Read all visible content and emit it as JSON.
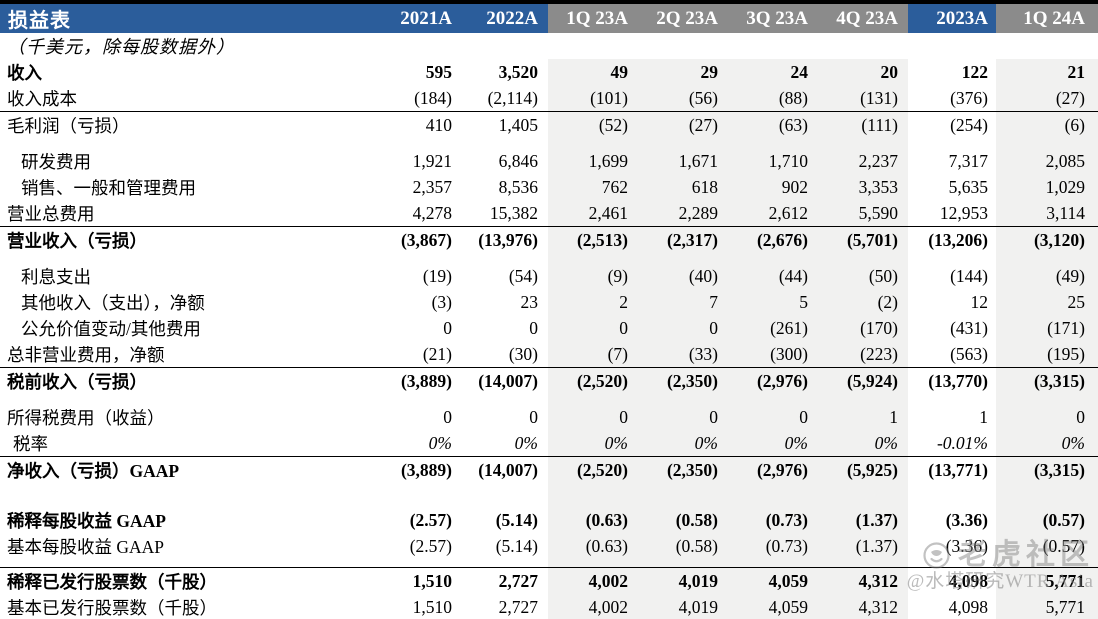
{
  "table": {
    "title": "损益表",
    "subtitle": "（千美元，除每股数据外）",
    "columns": [
      {
        "label": "2021A",
        "theme": "blue"
      },
      {
        "label": "2022A",
        "theme": "blue"
      },
      {
        "label": "1Q 23A",
        "theme": "gray"
      },
      {
        "label": "2Q 23A",
        "theme": "gray"
      },
      {
        "label": "3Q 23A",
        "theme": "gray"
      },
      {
        "label": "4Q 23A",
        "theme": "gray"
      },
      {
        "label": "2023A",
        "theme": "blue"
      },
      {
        "label": "1Q 24A",
        "theme": "gray"
      }
    ],
    "rows": [
      {
        "label": "收入",
        "bold": true,
        "values": [
          "595",
          "3,520",
          "49",
          "29",
          "24",
          "20",
          "122",
          "21"
        ]
      },
      {
        "label": "收入成本",
        "line": true,
        "values": [
          "(184)",
          "(2,114)",
          "(101)",
          "(56)",
          "(88)",
          "(131)",
          "(376)",
          "(27)"
        ]
      },
      {
        "label": "毛利润（亏损）",
        "values": [
          "410",
          "1,405",
          "(52)",
          "(27)",
          "(63)",
          "(111)",
          "(254)",
          "(6)"
        ]
      },
      {
        "spacer": "sp"
      },
      {
        "label": "研发费用",
        "indent": true,
        "values": [
          "1,921",
          "6,846",
          "1,699",
          "1,671",
          "1,710",
          "2,237",
          "7,317",
          "2,085"
        ]
      },
      {
        "label": "销售、一般和管理费用",
        "indent": true,
        "values": [
          "2,357",
          "8,536",
          "762",
          "618",
          "902",
          "3,353",
          "5,635",
          "1,029"
        ]
      },
      {
        "label": "营业总费用",
        "line": true,
        "values": [
          "4,278",
          "15,382",
          "2,461",
          "2,289",
          "2,612",
          "5,590",
          "12,953",
          "3,114"
        ]
      },
      {
        "label": "营业收入（亏损）",
        "bold": true,
        "values": [
          "(3,867)",
          "(13,976)",
          "(2,513)",
          "(2,317)",
          "(2,676)",
          "(5,701)",
          "(13,206)",
          "(3,120)"
        ]
      },
      {
        "spacer": "sp"
      },
      {
        "label": "利息支出",
        "indent": true,
        "values": [
          "(19)",
          "(54)",
          "(9)",
          "(40)",
          "(44)",
          "(50)",
          "(144)",
          "(49)"
        ]
      },
      {
        "label": "其他收入（支出），净额",
        "indent": true,
        "values": [
          "(3)",
          "23",
          "2",
          "7",
          "5",
          "(2)",
          "12",
          "25"
        ]
      },
      {
        "label": "公允价值变动/其他费用",
        "indent": true,
        "values": [
          "0",
          "0",
          "0",
          "0",
          "(261)",
          "(170)",
          "(431)",
          "(171)"
        ]
      },
      {
        "label": "总非营业费用，净额",
        "line": true,
        "values": [
          "(21)",
          "(30)",
          "(7)",
          "(33)",
          "(300)",
          "(223)",
          "(563)",
          "(195)"
        ]
      },
      {
        "label": "税前收入（亏损）",
        "bold": true,
        "values": [
          "(3,889)",
          "(14,007)",
          "(2,520)",
          "(2,350)",
          "(2,976)",
          "(5,924)",
          "(13,770)",
          "(3,315)"
        ]
      },
      {
        "spacer": "sp"
      },
      {
        "label": "所得税费用（收益）",
        "values": [
          "0",
          "0",
          "0",
          "0",
          "0",
          "1",
          "1",
          "0"
        ]
      },
      {
        "label": "税率",
        "halfindent": true,
        "italic": true,
        "line": true,
        "values": [
          "0%",
          "0%",
          "0%",
          "0%",
          "0%",
          "0%",
          "-0.01%",
          "0%"
        ]
      },
      {
        "label": "净收入（亏损）GAAP",
        "bold": true,
        "values": [
          "(3,889)",
          "(14,007)",
          "(2,520)",
          "(2,350)",
          "(2,976)",
          "(5,925)",
          "(13,771)",
          "(3,315)"
        ]
      },
      {
        "spacer": "sp24"
      },
      {
        "label": "稀释每股收益 GAAP",
        "bold": true,
        "values": [
          "(2.57)",
          "(5.14)",
          "(0.63)",
          "(0.58)",
          "(0.73)",
          "(1.37)",
          "(3.36)",
          "(0.57)"
        ]
      },
      {
        "label": "基本每股收益 GAAP",
        "values": [
          "(2.57)",
          "(5.14)",
          "(0.63)",
          "(0.58)",
          "(0.73)",
          "(1.37)",
          "(3.36)",
          "(0.57)"
        ]
      },
      {
        "spacer": "sp8",
        "line": true
      },
      {
        "label": "稀释已发行股票数（千股）",
        "bold": true,
        "values": [
          "1,510",
          "2,727",
          "4,002",
          "4,019",
          "4,059",
          "4,312",
          "4,098",
          "5,771"
        ]
      },
      {
        "label": "基本已发行股票数（千股）",
        "thick": true,
        "values": [
          "1,510",
          "2,727",
          "4,002",
          "4,019",
          "4,059",
          "4,312",
          "4,098",
          "5,771"
        ]
      }
    ]
  },
  "watermark": {
    "logo_icon": "tiger-logo-icon",
    "line1": "老虎社区",
    "line2": "@水塔研究WTR Asia"
  },
  "colors": {
    "header_blue": "#2b5d9b",
    "header_gray": "#8b8b8b",
    "stripe_bg": "#f1f1f0",
    "rule_black": "#000000",
    "watermark_gray": "#828282"
  }
}
